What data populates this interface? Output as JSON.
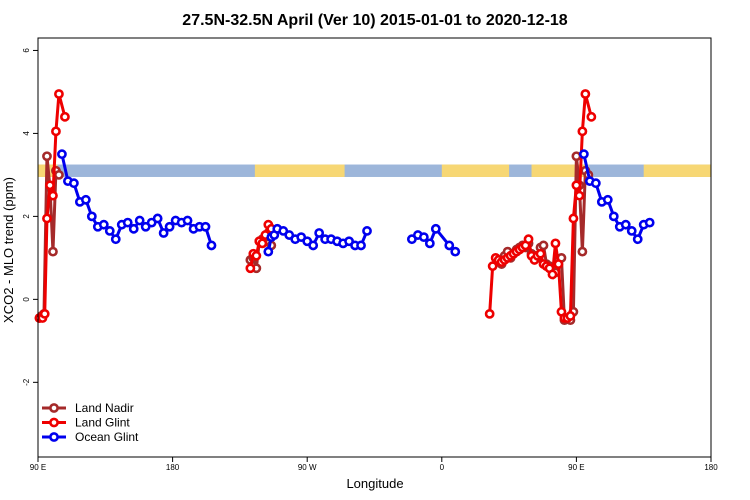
{
  "chart_data": {
    "type": "line",
    "title": "27.5N-32.5N April (Ver 10)   2015-01-01 to 2020-12-18",
    "xlabel": "Longitude",
    "ylabel": "XCO2 - MLO trend (ppm)",
    "xlim": [
      -180,
      360
    ],
    "ylim": [
      -3.8,
      6.3
    ],
    "x_ticks": [
      -180,
      -90,
      0,
      90,
      180,
      270,
      360
    ],
    "x_tick_labels": [
      "90 E",
      "180",
      "90 W",
      "0",
      "90 E",
      "180"
    ],
    "x_tick_values": [
      90,
      180,
      270,
      360,
      450,
      540
    ],
    "y_ticks": [
      -2,
      0,
      2,
      4,
      6
    ],
    "grid": false,
    "legend_position": "bottom-left",
    "series": [
      {
        "name": "Land Nadir",
        "color": "#A52A2A",
        "x": [
          65,
          67.5,
          70,
          72.5,
          75,
          77.5,
          80,
          85,
          87.5,
          90,
          92.5,
          95,
          97.5,
          100,
          102.5,
          105,
          110,
          112.5,
          115,
          117.5,
          120,
          122.5,
          125,
          127.5,
          130,
          132.5,
          135,
          137.5,
          140,
          142.5,
          145,
          147.5,
          155,
          157.5,
          160,
          165,
          170,
          172.5,
          175,
          177.5
        ],
        "x_note": "",
        "values": [
          0.95,
          1.0,
          0.75,
          1.4,
          1.5,
          1.55,
          1.3,
          0.85,
          1.05,
          1.15,
          1.0,
          1.1,
          1.2,
          1.25,
          1.3,
          1.25,
          1.1,
          1.05,
          1.0,
          0.95,
          1.3,
          0.9,
          0.85,
          0.75,
          0.7,
          1.0,
          1.0,
          0.5,
          0.45,
          0.45,
          0.4,
          0.55,
          3.45,
          2.75,
          1.15,
          3.1,
          3.0,
          3.5,
          3.4,
          3.0
        ]
      }
    ]
  },
  "legend": {
    "items": [
      {
        "label": "Land Nadir",
        "color": "#A52A2A"
      },
      {
        "label": "Land Glint",
        "color": "#EE0000"
      },
      {
        "label": "Ocean Glint",
        "color": "#0000EE"
      }
    ]
  },
  "colors": {
    "land_band": "#F7D774",
    "ocean_band": "#9DB6DA"
  }
}
